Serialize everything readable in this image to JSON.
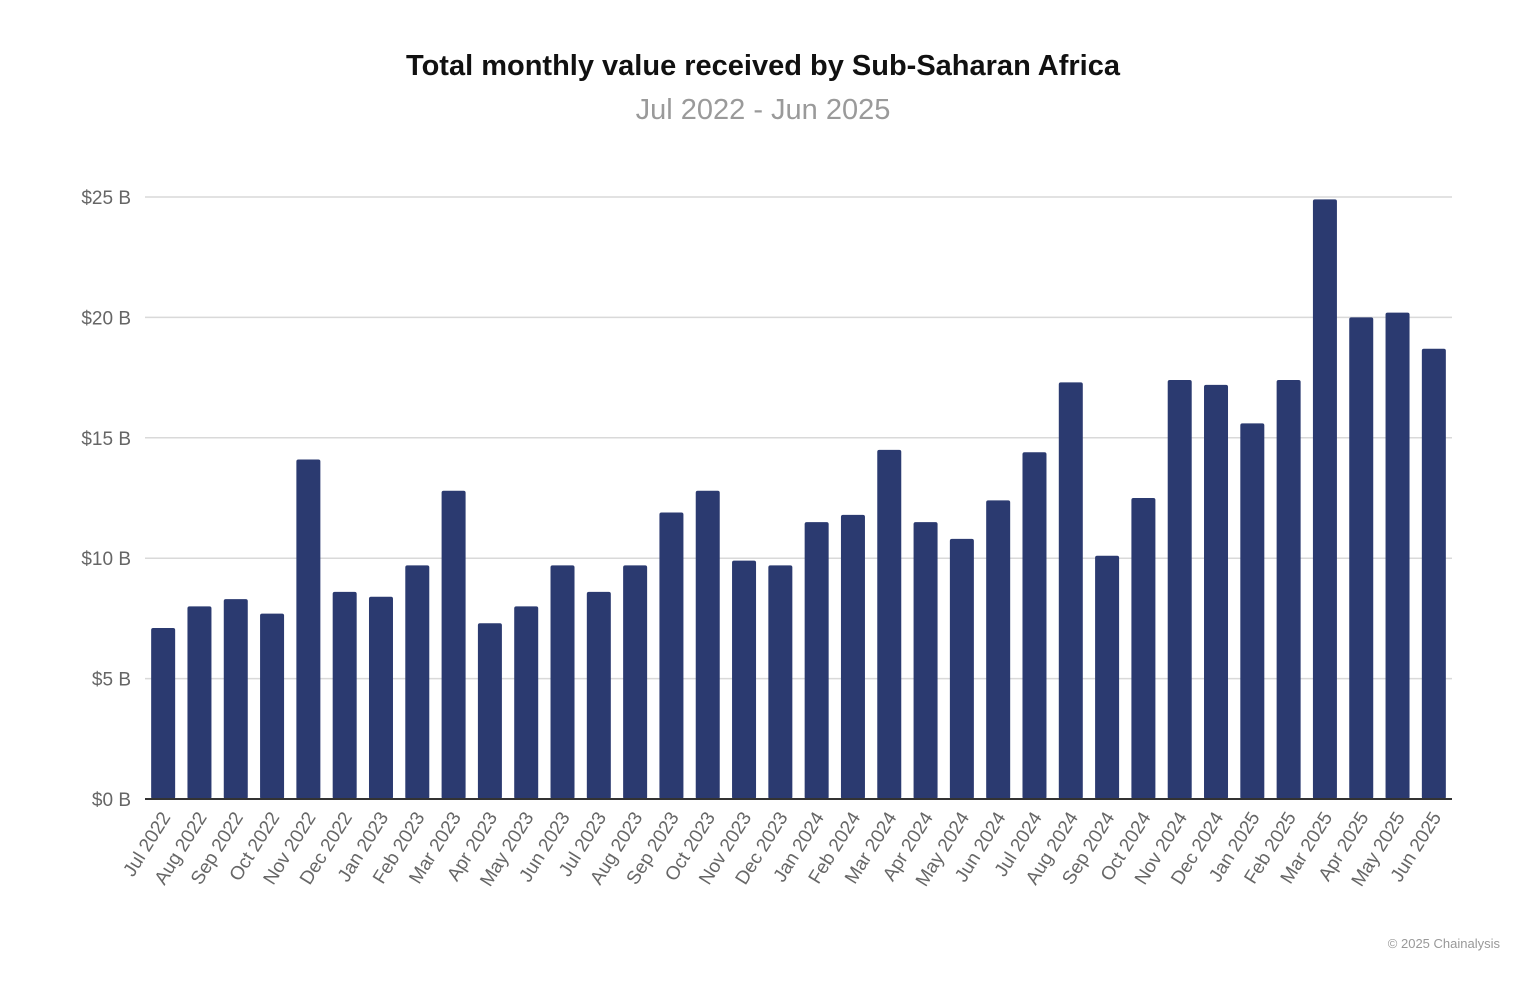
{
  "chart_data": {
    "type": "bar",
    "title": "Total monthly value received by Sub-Saharan Africa",
    "subtitle": "Jul 2022 - Jun 2025",
    "xlabel": "",
    "ylabel": "",
    "ylim": [
      0,
      25
    ],
    "yticks": [
      "$0 B",
      "$5 B",
      "$10 B",
      "$15 B",
      "$20 B",
      "$25 B"
    ],
    "ytick_values": [
      0,
      5,
      10,
      15,
      20,
      25
    ],
    "grid": true,
    "bar_color": "#2b3a70",
    "categories": [
      "Jul 2022",
      "Aug 2022",
      "Sep 2022",
      "Oct 2022",
      "Nov 2022",
      "Dec 2022",
      "Jan 2023",
      "Feb 2023",
      "Mar 2023",
      "Apr 2023",
      "May 2023",
      "Jun 2023",
      "Jul 2023",
      "Aug 2023",
      "Sep 2023",
      "Oct 2023",
      "Nov 2023",
      "Dec 2023",
      "Jan 2024",
      "Feb 2024",
      "Mar 2024",
      "Apr 2024",
      "May 2024",
      "Jun 2024",
      "Jul 2024",
      "Aug 2024",
      "Sep 2024",
      "Oct 2024",
      "Nov 2024",
      "Dec 2024",
      "Jan 2025",
      "Feb 2025",
      "Mar 2025",
      "Apr 2025",
      "May 2025",
      "Jun 2025"
    ],
    "values": [
      7.1,
      8.0,
      8.3,
      7.7,
      14.1,
      8.6,
      8.4,
      9.7,
      12.8,
      7.3,
      8.0,
      9.7,
      8.6,
      9.7,
      11.9,
      12.8,
      9.9,
      9.7,
      11.5,
      11.8,
      14.5,
      11.5,
      10.8,
      12.4,
      14.4,
      17.3,
      10.1,
      12.5,
      17.4,
      17.2,
      15.6,
      17.4,
      24.9,
      20.0,
      20.2,
      18.7
    ]
  },
  "footer": {
    "credit": "© 2025 Chainalysis"
  }
}
